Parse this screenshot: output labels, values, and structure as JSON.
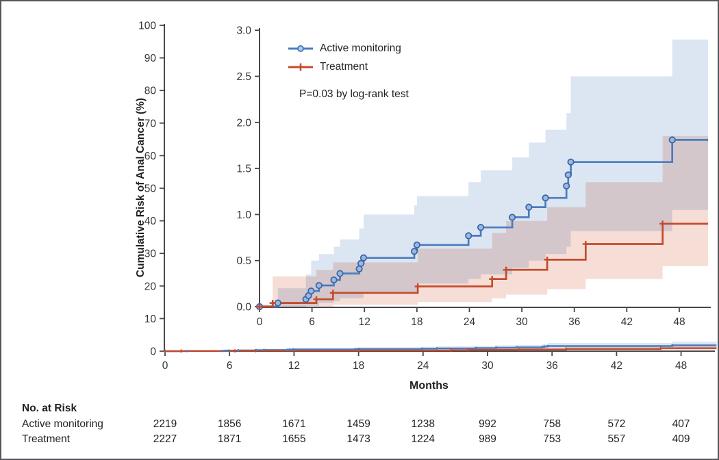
{
  "figure": {
    "y_axis_title": "Cumulative Risk of Anal Cancer (%)",
    "x_axis_title": "Months"
  },
  "legend": {
    "items": [
      {
        "label": "Active monitoring",
        "marker": "circle",
        "color": "#4a7cc0"
      },
      {
        "label": "Treatment",
        "marker": "plus",
        "color": "#c44a2c"
      }
    ],
    "pvalue_text": "P=0.03 by log-rank test"
  },
  "risk_table": {
    "title": "No. at Risk",
    "timepoints": [
      0,
      6,
      12,
      18,
      24,
      30,
      36,
      42,
      48
    ],
    "rows": [
      {
        "label": "Active monitoring",
        "values": [
          2219,
          1856,
          1671,
          1459,
          1238,
          992,
          758,
          572,
          407
        ]
      },
      {
        "label": "Treatment",
        "values": [
          2227,
          1871,
          1655,
          1473,
          1224,
          989,
          753,
          557,
          409
        ]
      }
    ]
  },
  "chart_data": {
    "type": "line",
    "subtype": "cumulative-incidence-step-curves-with-inset",
    "title": "",
    "xlabel": "Months",
    "ylabel": "Cumulative Risk of Anal Cancer (%)",
    "pvalue": "P=0.03 by log-rank test",
    "legend_position": "inset-top-left",
    "grid": false,
    "end_x": 51.3,
    "outer_axis": {
      "xlim": [
        0,
        51.2
      ],
      "ylim": [
        0,
        100
      ],
      "xtick_labels": [
        "0",
        "6",
        "12",
        "18",
        "24",
        "30",
        "36",
        "42",
        "48"
      ],
      "ytick_labels": [
        "100",
        "90",
        "80",
        "70",
        "60",
        "50",
        "40",
        "30",
        "20",
        "10",
        "0"
      ]
    },
    "inset_axis": {
      "xlim": [
        0,
        51.6
      ],
      "ylim": [
        0,
        3.0
      ],
      "xtick_labels": [
        "0",
        "6",
        "12",
        "18",
        "24",
        "30",
        "36",
        "42",
        "48"
      ],
      "ytick_labels": [
        "3.0",
        "2.5",
        "2.0",
        "1.5",
        "1.0",
        "0.5",
        "0.0"
      ]
    },
    "series": [
      {
        "name": "Active monitoring",
        "color": "#4a7cc0",
        "band_color": "#dce5f2",
        "marker": "circle",
        "marker_fill": "#9db8dd",
        "steps": [
          [
            0,
            0
          ],
          [
            2.1,
            0.04
          ],
          [
            5.3,
            0.08
          ],
          [
            5.6,
            0.12
          ],
          [
            5.9,
            0.17
          ],
          [
            6.8,
            0.23
          ],
          [
            8.5,
            0.29
          ],
          [
            9.2,
            0.36
          ],
          [
            11.4,
            0.41
          ],
          [
            11.6,
            0.47
          ],
          [
            11.9,
            0.53
          ],
          [
            17.7,
            0.6
          ],
          [
            18.0,
            0.67
          ],
          [
            23.9,
            0.77
          ],
          [
            25.3,
            0.86
          ],
          [
            28.9,
            0.97
          ],
          [
            30.8,
            1.08
          ],
          [
            32.7,
            1.18
          ],
          [
            35.1,
            1.31
          ],
          [
            35.3,
            1.43
          ],
          [
            35.6,
            1.57
          ],
          [
            47.2,
            1.81
          ]
        ],
        "upper": [
          [
            0,
            0.02
          ],
          [
            2.1,
            0.2
          ],
          [
            5.3,
            0.35
          ],
          [
            5.9,
            0.5
          ],
          [
            6.8,
            0.57
          ],
          [
            8.5,
            0.65
          ],
          [
            9.2,
            0.73
          ],
          [
            11.4,
            0.85
          ],
          [
            11.9,
            1.0
          ],
          [
            17.7,
            1.1
          ],
          [
            18.0,
            1.2
          ],
          [
            23.9,
            1.35
          ],
          [
            25.3,
            1.48
          ],
          [
            28.9,
            1.62
          ],
          [
            30.8,
            1.78
          ],
          [
            32.7,
            1.92
          ],
          [
            35.1,
            2.1
          ],
          [
            35.6,
            2.5
          ],
          [
            47.2,
            2.9
          ]
        ],
        "lower": [
          [
            0,
            0
          ],
          [
            5.3,
            0.01
          ],
          [
            6.8,
            0.04
          ],
          [
            8.5,
            0.06
          ],
          [
            9.2,
            0.09
          ],
          [
            11.9,
            0.15
          ],
          [
            18.0,
            0.25
          ],
          [
            23.9,
            0.3
          ],
          [
            25.3,
            0.35
          ],
          [
            28.9,
            0.42
          ],
          [
            30.8,
            0.5
          ],
          [
            32.7,
            0.57
          ],
          [
            35.1,
            0.65
          ],
          [
            35.6,
            0.82
          ],
          [
            47.2,
            1.05
          ]
        ]
      },
      {
        "name": "Treatment",
        "color": "#c44a2c",
        "band_color": "#f6ded6",
        "marker": "plus",
        "marker_fill": "#c44a2c",
        "steps": [
          [
            0,
            0
          ],
          [
            1.5,
            0.04
          ],
          [
            6.5,
            0.08
          ],
          [
            8.4,
            0.15
          ],
          [
            18.1,
            0.22
          ],
          [
            26.6,
            0.3
          ],
          [
            28.2,
            0.4
          ],
          [
            32.9,
            0.51
          ],
          [
            37.3,
            0.68
          ],
          [
            46.1,
            0.9
          ]
        ],
        "upper": [
          [
            0,
            0.02
          ],
          [
            1.5,
            0.33
          ],
          [
            6.5,
            0.4
          ],
          [
            8.4,
            0.48
          ],
          [
            18.1,
            0.63
          ],
          [
            26.6,
            0.8
          ],
          [
            28.2,
            0.93
          ],
          [
            32.9,
            1.08
          ],
          [
            37.3,
            1.35
          ],
          [
            46.1,
            1.85
          ]
        ],
        "lower": [
          [
            0,
            0
          ],
          [
            8.4,
            0.02
          ],
          [
            18.1,
            0.05
          ],
          [
            26.6,
            0.09
          ],
          [
            28.2,
            0.13
          ],
          [
            32.9,
            0.19
          ],
          [
            37.3,
            0.3
          ],
          [
            46.1,
            0.44
          ]
        ]
      }
    ]
  }
}
